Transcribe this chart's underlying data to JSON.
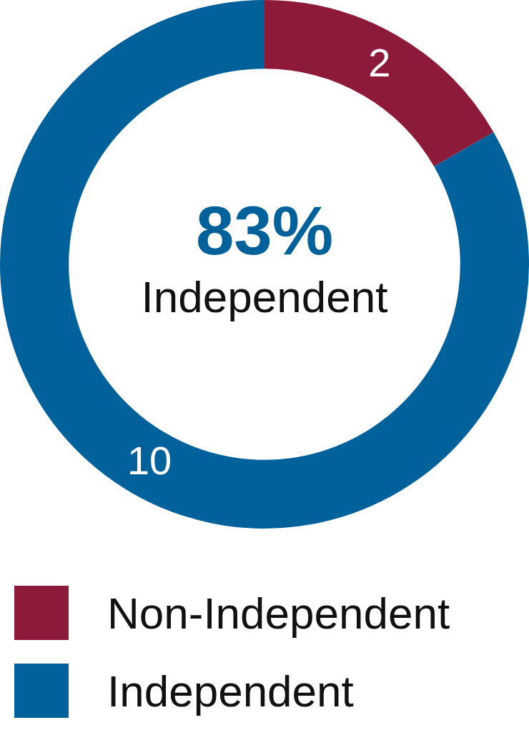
{
  "chart_data": {
    "type": "donut",
    "categories": [
      "Non-Independent",
      "Independent"
    ],
    "values": [
      2,
      10
    ],
    "colors": [
      "#8e1a3a",
      "#01619b"
    ],
    "data_labels": true,
    "legend": "bottom",
    "annotations": [
      "83%",
      "Independent"
    ]
  }
}
